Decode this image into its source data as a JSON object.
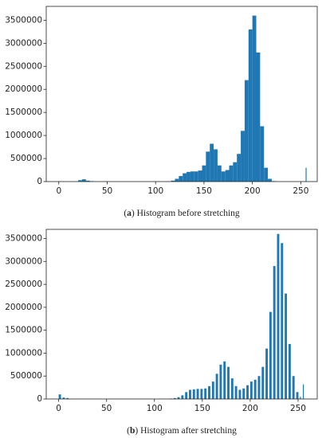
{
  "chart_data": [
    {
      "type": "bar",
      "color": "#1f77b4",
      "caption": [
        "(",
        "a",
        ") Histogram before stretching"
      ],
      "x": [
        0,
        4,
        8,
        12,
        16,
        20,
        24,
        28,
        32,
        36,
        40,
        44,
        48,
        52,
        56,
        60,
        64,
        68,
        72,
        76,
        80,
        84,
        88,
        92,
        96,
        100,
        104,
        108,
        112,
        116,
        120,
        124,
        128,
        132,
        136,
        140,
        144,
        148,
        152,
        156,
        160,
        164,
        168,
        172,
        176,
        180,
        184,
        188,
        192,
        196,
        200,
        204,
        208,
        212,
        216,
        220,
        224,
        228,
        232,
        236,
        240,
        244,
        248,
        252,
        255
      ],
      "values": [
        0,
        0,
        0,
        0,
        0,
        30000,
        50000,
        20000,
        10000,
        0,
        0,
        0,
        0,
        0,
        0,
        0,
        0,
        0,
        0,
        0,
        0,
        0,
        0,
        0,
        0,
        0,
        0,
        0,
        5000,
        20000,
        60000,
        120000,
        180000,
        210000,
        220000,
        220000,
        240000,
        350000,
        650000,
        820000,
        700000,
        350000,
        220000,
        250000,
        350000,
        420000,
        600000,
        1100000,
        2200000,
        3300000,
        3600000,
        2800000,
        1200000,
        300000,
        60000,
        10000,
        0,
        0,
        0,
        0,
        0,
        0,
        0,
        0,
        300000
      ],
      "xlim": [
        -13,
        267
      ],
      "xticks": [
        0,
        50,
        100,
        150,
        200,
        250
      ],
      "ylim": [
        0,
        3800000
      ],
      "yticks": [
        0,
        500000,
        1000000,
        1500000,
        2000000,
        2500000,
        3000000,
        3500000
      ]
    },
    {
      "type": "bar",
      "color": "#1f77b4",
      "caption": [
        "(",
        "b",
        ") Histogram after stretching"
      ],
      "x": [
        0,
        4,
        8,
        12,
        16,
        20,
        24,
        28,
        32,
        36,
        40,
        44,
        48,
        52,
        56,
        60,
        64,
        68,
        72,
        76,
        80,
        84,
        88,
        92,
        96,
        100,
        104,
        108,
        112,
        116,
        120,
        124,
        128,
        132,
        136,
        140,
        144,
        148,
        152,
        156,
        160,
        164,
        168,
        172,
        176,
        180,
        184,
        188,
        192,
        196,
        200,
        204,
        208,
        212,
        216,
        220,
        224,
        228,
        232,
        236,
        240,
        244,
        248,
        252,
        255
      ],
      "values": [
        100000,
        30000,
        20000,
        0,
        0,
        0,
        0,
        0,
        0,
        0,
        0,
        0,
        0,
        0,
        0,
        0,
        0,
        0,
        0,
        0,
        0,
        0,
        0,
        0,
        0,
        0,
        0,
        0,
        0,
        10000,
        20000,
        40000,
        80000,
        150000,
        200000,
        210000,
        220000,
        220000,
        230000,
        280000,
        380000,
        550000,
        750000,
        820000,
        700000,
        450000,
        280000,
        200000,
        230000,
        300000,
        380000,
        420000,
        500000,
        700000,
        1100000,
        1900000,
        2900000,
        3600000,
        3400000,
        2300000,
        1200000,
        500000,
        150000,
        50000,
        320000
      ],
      "xlim": [
        -13,
        270
      ],
      "xticks": [
        0,
        50,
        100,
        150,
        200,
        250
      ],
      "ylim": [
        0,
        3700000
      ],
      "yticks": [
        0,
        500000,
        1000000,
        1500000,
        2000000,
        2500000,
        3000000,
        3500000
      ]
    }
  ]
}
